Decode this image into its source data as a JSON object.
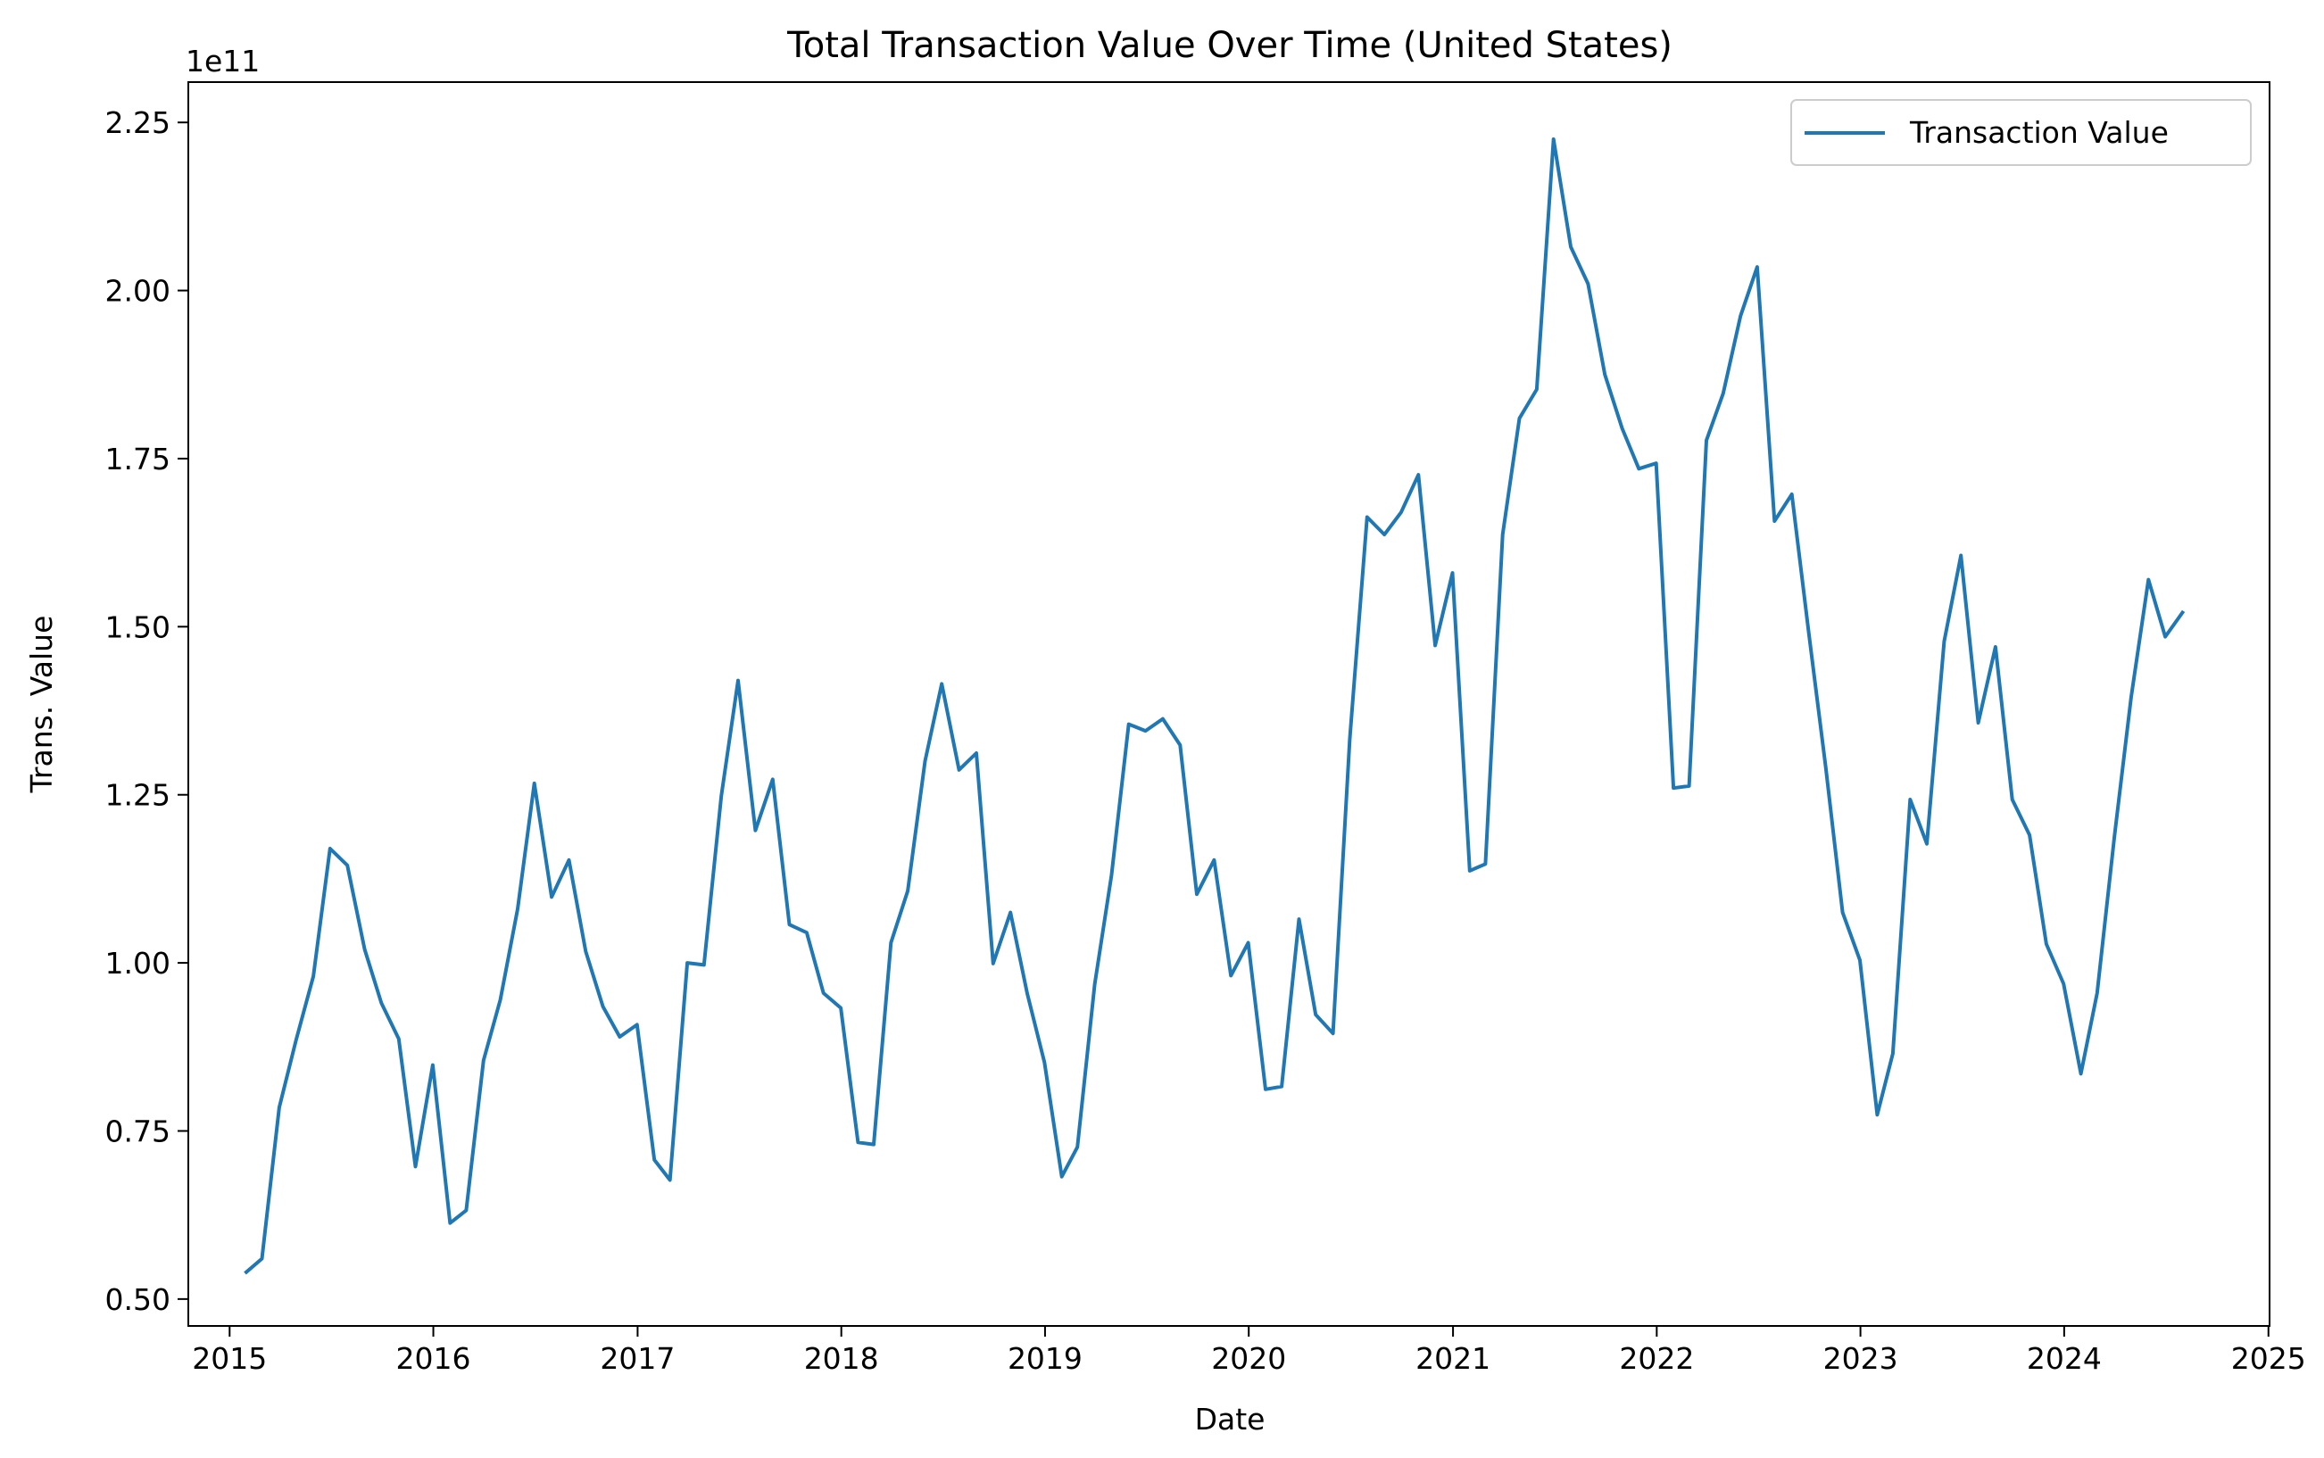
{
  "chart_data": {
    "type": "line",
    "title": "Total Transaction Value Over Time (United States)",
    "xlabel": "Date",
    "ylabel": "Trans. Value",
    "offset_label": "1e11",
    "xlim": [
      "2014-10-19",
      "2025-01-03"
    ],
    "ylim": [
      0.46,
      2.31
    ],
    "x_ticks": [
      "2015",
      "2016",
      "2017",
      "2018",
      "2019",
      "2020",
      "2021",
      "2022",
      "2023",
      "2024",
      "2025"
    ],
    "y_ticks": [
      "0.50",
      "0.75",
      "1.00",
      "1.25",
      "1.50",
      "1.75",
      "2.00",
      "2.25"
    ],
    "grid": false,
    "legend_position": "top-right",
    "series": [
      {
        "name": "Transaction Value",
        "color": "#1f77b4",
        "x": [
          "2015-01-31",
          "2015-02-28",
          "2015-03-31",
          "2015-04-30",
          "2015-05-31",
          "2015-06-30",
          "2015-07-31",
          "2015-08-31",
          "2015-09-30",
          "2015-10-31",
          "2015-11-30",
          "2015-12-31",
          "2016-01-31",
          "2016-02-29",
          "2016-03-31",
          "2016-04-30",
          "2016-05-31",
          "2016-06-30",
          "2016-07-31",
          "2016-08-31",
          "2016-09-30",
          "2016-10-31",
          "2016-11-30",
          "2016-12-31",
          "2017-01-31",
          "2017-02-28",
          "2017-03-31",
          "2017-04-30",
          "2017-05-31",
          "2017-06-30",
          "2017-07-31",
          "2017-08-31",
          "2017-09-30",
          "2017-10-31",
          "2017-11-30",
          "2017-12-31",
          "2018-01-31",
          "2018-02-28",
          "2018-03-31",
          "2018-04-30",
          "2018-05-31",
          "2018-06-30",
          "2018-07-31",
          "2018-08-31",
          "2018-09-30",
          "2018-10-31",
          "2018-11-30",
          "2018-12-31",
          "2019-01-31",
          "2019-02-28",
          "2019-03-31",
          "2019-04-30",
          "2019-05-31",
          "2019-06-30",
          "2019-07-31",
          "2019-08-31",
          "2019-09-30",
          "2019-10-31",
          "2019-11-30",
          "2019-12-31",
          "2020-01-31",
          "2020-02-29",
          "2020-03-31",
          "2020-04-30",
          "2020-05-31",
          "2020-06-30",
          "2020-07-31",
          "2020-08-31",
          "2020-09-30",
          "2020-10-31",
          "2020-11-30",
          "2020-12-31",
          "2021-01-31",
          "2021-02-28",
          "2021-03-31",
          "2021-04-30",
          "2021-05-31",
          "2021-06-30",
          "2021-07-31",
          "2021-08-31",
          "2021-09-30",
          "2021-10-31",
          "2021-11-30",
          "2021-12-31",
          "2022-01-31",
          "2022-02-28",
          "2022-03-31",
          "2022-04-30",
          "2022-05-31",
          "2022-06-30",
          "2022-07-31",
          "2022-08-31",
          "2022-09-30",
          "2022-10-31",
          "2022-11-30",
          "2022-12-31",
          "2023-01-31",
          "2023-02-28",
          "2023-03-31",
          "2023-04-30",
          "2023-05-31",
          "2023-06-30",
          "2023-07-31",
          "2023-08-31",
          "2023-09-30",
          "2023-10-31",
          "2023-11-30",
          "2023-12-31",
          "2024-01-31",
          "2024-02-29",
          "2024-03-31",
          "2024-04-30",
          "2024-05-31",
          "2024-06-30",
          "2024-07-31"
        ],
        "y": [
          0.54,
          0.56,
          0.785,
          0.885,
          0.98,
          1.17,
          1.145,
          1.02,
          0.94,
          0.887,
          0.697,
          0.848,
          0.613,
          0.632,
          0.855,
          0.945,
          1.08,
          1.267,
          1.098,
          1.153,
          1.017,
          0.935,
          0.89,
          0.908,
          0.707,
          0.677,
          1.0,
          0.997,
          1.248,
          1.42,
          1.197,
          1.273,
          1.057,
          1.045,
          0.955,
          0.933,
          0.733,
          0.73,
          1.03,
          1.107,
          1.3,
          1.415,
          1.287,
          1.312,
          0.999,
          1.075,
          0.955,
          0.852,
          0.682,
          0.726,
          0.968,
          1.13,
          1.355,
          1.345,
          1.363,
          1.324,
          1.102,
          1.153,
          0.981,
          1.03,
          0.812,
          0.816,
          1.065,
          0.923,
          0.895,
          1.333,
          1.663,
          1.637,
          1.67,
          1.726,
          1.472,
          1.58,
          1.137,
          1.147,
          1.637,
          1.81,
          1.853,
          2.225,
          2.065,
          2.01,
          1.875,
          1.795,
          1.735,
          1.743,
          1.26,
          1.263,
          1.777,
          1.847,
          1.962,
          2.035,
          1.657,
          1.697,
          1.494,
          1.29,
          1.075,
          1.004,
          0.774,
          0.865,
          1.243,
          1.177,
          1.478,
          1.606,
          1.357,
          1.47,
          1.243,
          1.19,
          1.028,
          0.969,
          0.835,
          0.955,
          1.187,
          1.395,
          1.57,
          1.485,
          1.521
        ]
      }
    ]
  }
}
